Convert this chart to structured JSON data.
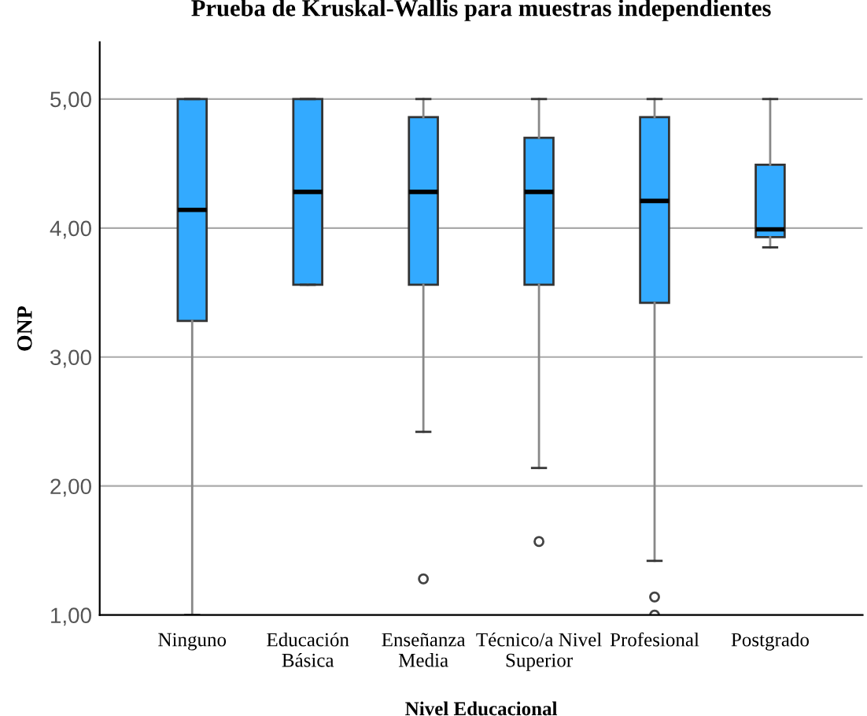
{
  "chart_data": {
    "type": "box",
    "title": "Prueba de Kruskal-Wallis para muestras independientes",
    "xlabel": "Nivel Educacional",
    "ylabel": "ONP",
    "categories": [
      "Ninguno",
      "Educación\nBásica",
      "Enseñanza\nMedia",
      "Técnico/a Nivel\nSuperior",
      "Profesional",
      "Postgrado"
    ],
    "series": [
      {
        "color": "#33aaff",
        "boxes": [
          {
            "low": 1.0,
            "q1": 3.28,
            "median": 4.14,
            "q3": 5.0,
            "high": 5.0
          },
          {
            "low": 3.56,
            "q1": 3.56,
            "median": 4.28,
            "q3": 5.0,
            "high": 5.0
          },
          {
            "low": 2.42,
            "q1": 3.56,
            "median": 4.28,
            "q3": 4.86,
            "high": 5.0,
            "outliers": [
              1.28
            ]
          },
          {
            "low": 2.14,
            "q1": 3.56,
            "median": 4.28,
            "q3": 4.7,
            "high": 5.0,
            "outliers": [
              1.57
            ]
          },
          {
            "low": 1.42,
            "q1": 3.42,
            "median": 4.21,
            "q3": 4.86,
            "high": 5.0,
            "outliers": [
              1.14,
              1.0
            ]
          },
          {
            "low": 3.85,
            "q1": 3.93,
            "median": 3.99,
            "q3": 4.49,
            "high": 5.0
          }
        ]
      }
    ],
    "ylim": [
      1.0,
      5.44
    ],
    "yticks": [
      {
        "value": 1,
        "label": "1,00"
      },
      {
        "value": 2,
        "label": "2,00"
      },
      {
        "value": 3,
        "label": "3,00"
      },
      {
        "value": 4,
        "label": "4,00"
      },
      {
        "value": 5,
        "label": "5,00"
      }
    ],
    "grid": "y"
  }
}
